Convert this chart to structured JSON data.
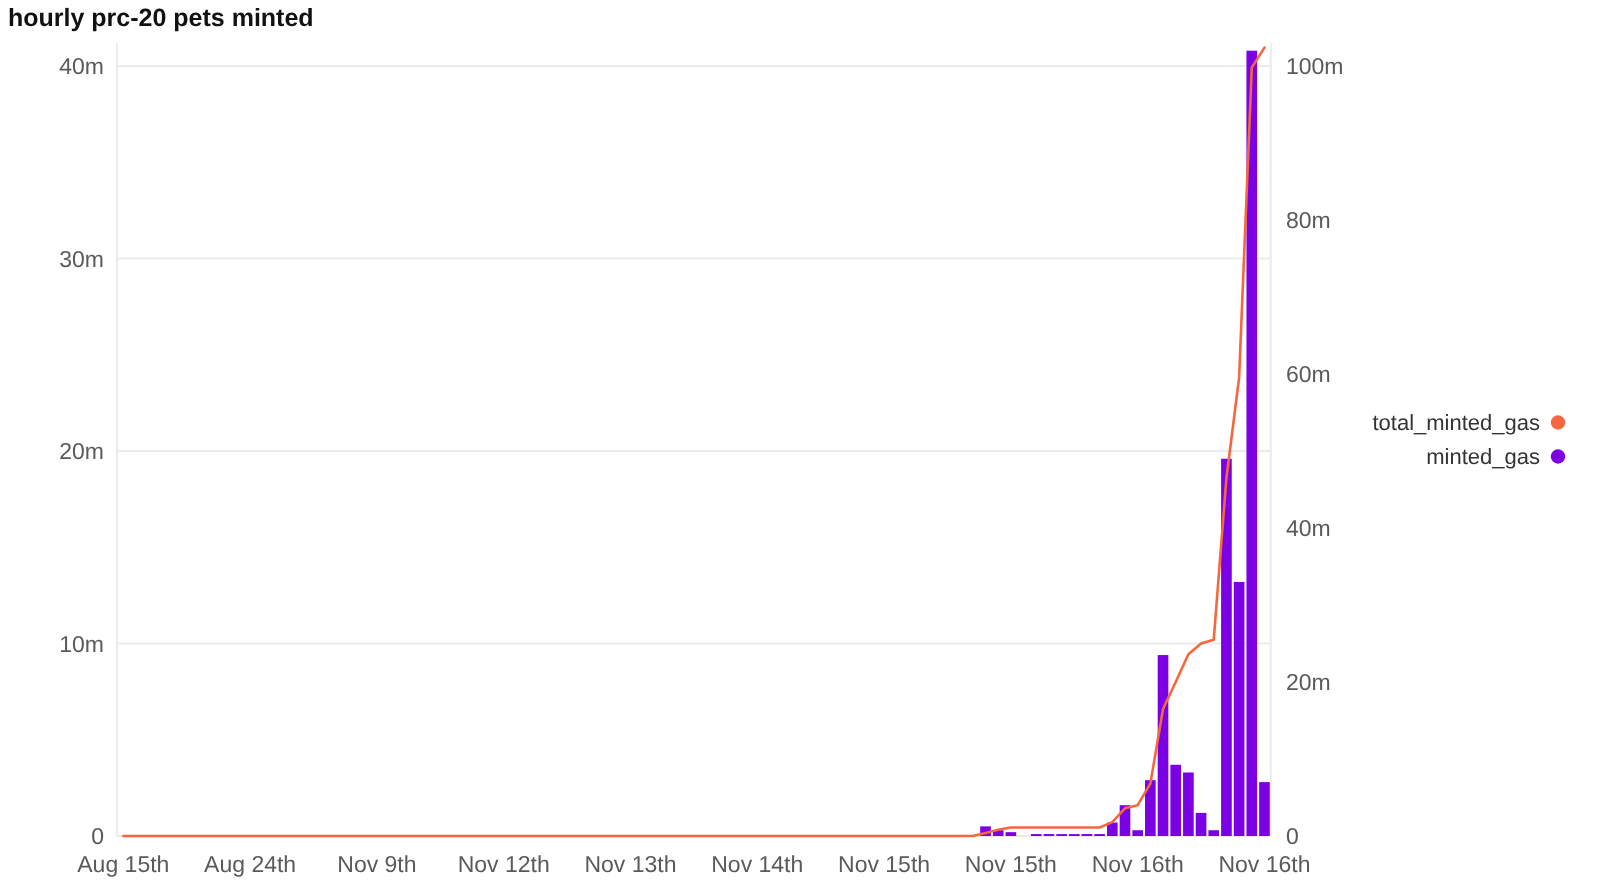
{
  "chart_data": {
    "type": "bar",
    "title": "hourly prc-20 pets minted",
    "categories": [
      "Aug 15th",
      null,
      null,
      null,
      null,
      null,
      null,
      null,
      null,
      null,
      "Aug 24th",
      null,
      null,
      null,
      null,
      null,
      null,
      null,
      null,
      null,
      "Nov 9th",
      null,
      null,
      null,
      null,
      null,
      null,
      null,
      null,
      null,
      "Nov 12th",
      null,
      null,
      null,
      null,
      null,
      null,
      null,
      null,
      null,
      "Nov 13th",
      null,
      null,
      null,
      null,
      null,
      null,
      null,
      null,
      null,
      "Nov 14th",
      null,
      null,
      null,
      null,
      null,
      null,
      null,
      null,
      null,
      "Nov 15th",
      null,
      null,
      null,
      null,
      null,
      null,
      null,
      null,
      null,
      "Nov 15th",
      null,
      null,
      null,
      null,
      null,
      null,
      null,
      null,
      null,
      "Nov 16th",
      null,
      null,
      null,
      null,
      null,
      null,
      null,
      null,
      null,
      "Nov 16th"
    ],
    "series": [
      {
        "name": "total_minted_gas",
        "type": "line",
        "axis": "y2",
        "color": "#f4673f",
        "values": [
          0,
          0,
          0,
          0,
          0,
          0,
          0,
          0,
          0,
          0,
          0,
          0,
          0,
          0,
          0,
          0,
          0,
          0,
          0,
          0,
          0,
          0,
          0,
          0,
          0,
          0,
          0,
          0,
          0,
          0,
          0,
          0,
          0,
          0,
          0,
          0,
          0,
          0,
          0,
          0,
          0,
          0,
          0,
          0,
          0,
          0,
          0,
          0,
          0,
          0,
          0,
          0,
          0,
          0,
          0,
          0,
          0,
          0,
          0,
          0,
          0,
          0,
          0,
          0,
          0,
          0,
          0,
          0,
          0.4,
          0.8,
          1.1,
          1.1,
          1.1,
          1.1,
          1.1,
          1.1,
          1.1,
          1.1,
          1.8,
          3.6,
          4.0,
          6.8,
          16.5,
          20,
          23.6,
          25.0,
          25.5,
          46.5,
          59.5,
          99.8,
          102.4
        ]
      },
      {
        "name": "minted_gas",
        "color": "#7b00e3",
        "values": [
          null,
          null,
          null,
          null,
          null,
          null,
          null,
          null,
          null,
          null,
          null,
          null,
          null,
          null,
          null,
          null,
          null,
          null,
          null,
          null,
          null,
          null,
          null,
          null,
          null,
          null,
          null,
          null,
          null,
          null,
          null,
          null,
          null,
          null,
          null,
          null,
          null,
          null,
          null,
          null,
          null,
          null,
          null,
          null,
          null,
          null,
          null,
          null,
          null,
          null,
          null,
          null,
          null,
          null,
          null,
          null,
          null,
          null,
          null,
          null,
          null,
          null,
          null,
          null,
          null,
          null,
          null,
          null,
          0.5,
          0.3,
          0.2,
          null,
          0.1,
          0.1,
          0.1,
          0.1,
          0.1,
          0.1,
          0.7,
          1.6,
          0.3,
          2.9,
          9.4,
          3.7,
          3.3,
          1.2,
          0.3,
          19.6,
          13.2,
          40.8,
          2.8
        ]
      }
    ],
    "ylim": [
      0,
      41.2
    ],
    "yticks": [
      0,
      {
        "value": 10,
        "label": "10m"
      },
      {
        "value": 20,
        "label": "20m"
      },
      {
        "value": 30,
        "label": "30m"
      },
      {
        "value": 40,
        "label": "40m"
      }
    ],
    "y2lim": [
      0,
      103
    ],
    "y2ticks": [
      0,
      {
        "value": 20,
        "label": "20m"
      },
      {
        "value": 40,
        "label": "40m"
      },
      {
        "value": 60,
        "label": "60m"
      },
      {
        "value": 80,
        "label": "80m"
      },
      {
        "value": 100,
        "label": "100m"
      }
    ],
    "grid": "y",
    "legend": "right"
  }
}
